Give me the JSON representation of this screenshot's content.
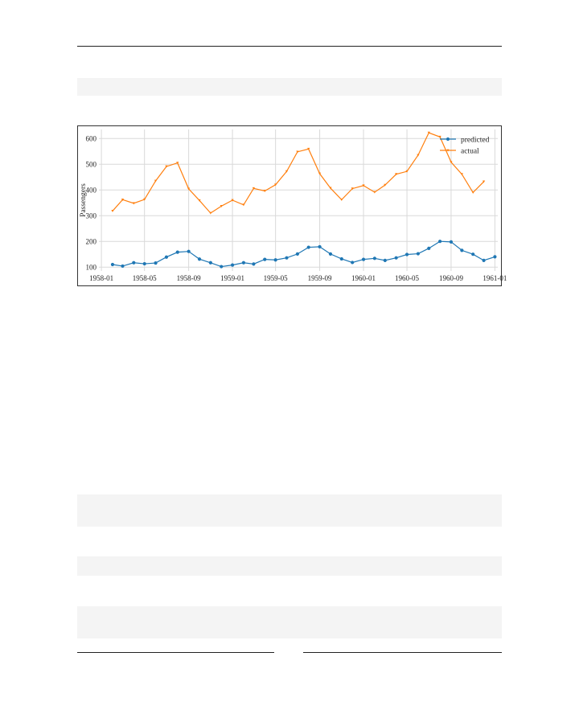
{
  "page": {
    "colors": {
      "predicted": "#1f77b4",
      "actual": "#ff7f0e",
      "grid": "#d9d9d9",
      "code_bg": "#f4f4f4"
    }
  },
  "chart_data": {
    "type": "line",
    "title": "",
    "xlabel": "",
    "ylabel": "Passengers",
    "x_ticks": [
      "1958-01",
      "1958-05",
      "1958-09",
      "1959-01",
      "1959-05",
      "1959-09",
      "1960-01",
      "1960-05",
      "1960-09",
      "1961-01"
    ],
    "y_ticks": [
      100,
      200,
      300,
      400,
      500,
      600
    ],
    "ylim": [
      85,
      635
    ],
    "xlim": [
      "1957-12-25",
      "1961-01-09"
    ],
    "grid": true,
    "legend_position": "top-right",
    "series": [
      {
        "name": "predicted",
        "color": "#1f77b4",
        "marker": "circle",
        "x": [
          "1958-02",
          "1958-03",
          "1958-04",
          "1958-05",
          "1958-06",
          "1958-07",
          "1958-08",
          "1958-09",
          "1958-10",
          "1958-11",
          "1958-12",
          "1959-01",
          "1959-02",
          "1959-03",
          "1959-04",
          "1959-05",
          "1959-06",
          "1959-07",
          "1959-08",
          "1959-09",
          "1959-10",
          "1959-11",
          "1959-12",
          "1960-01",
          "1960-02",
          "1960-03",
          "1960-04",
          "1960-05",
          "1960-06",
          "1960-07",
          "1960-08",
          "1960-09",
          "1960-10",
          "1960-11",
          "1960-12",
          "1961-01"
        ],
        "values": [
          110,
          104,
          117,
          113,
          116,
          139,
          158,
          161,
          131,
          117,
          102,
          108,
          117,
          112,
          130,
          128,
          136,
          151,
          177,
          179,
          151,
          132,
          118,
          130,
          134,
          126,
          136,
          149,
          152,
          173,
          200,
          198,
          165,
          150,
          126,
          140
        ]
      },
      {
        "name": "actual",
        "color": "#ff7f0e",
        "marker": "tri",
        "x": [
          "1958-02",
          "1958-03",
          "1958-04",
          "1958-05",
          "1958-06",
          "1958-07",
          "1958-08",
          "1958-09",
          "1958-10",
          "1958-11",
          "1958-12",
          "1959-01",
          "1959-02",
          "1959-03",
          "1959-04",
          "1959-05",
          "1959-06",
          "1959-07",
          "1959-08",
          "1959-09",
          "1959-10",
          "1959-11",
          "1959-12",
          "1960-01",
          "1960-02",
          "1960-03",
          "1960-04",
          "1960-05",
          "1960-06",
          "1960-07",
          "1960-08",
          "1960-09",
          "1960-10",
          "1960-11",
          "1960-12"
        ],
        "values": [
          318,
          362,
          348,
          363,
          435,
          491,
          505,
          404,
          359,
          310,
          337,
          360,
          342,
          406,
          396,
          420,
          472,
          548,
          559,
          463,
          407,
          362,
          405,
          417,
          391,
          419,
          461,
          472,
          535,
          622,
          606,
          508,
          461,
          390,
          432
        ]
      }
    ]
  }
}
